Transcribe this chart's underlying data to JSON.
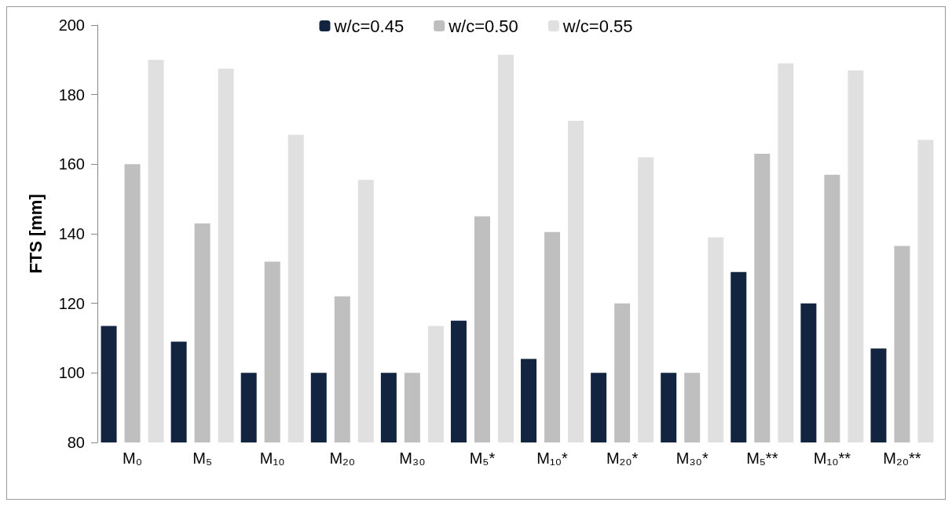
{
  "chart_data": {
    "type": "bar",
    "ylabel": "FTS [mm]",
    "categories": [
      "M₀",
      "M₅",
      "M₁₀",
      "M₂₀",
      "M₃₀",
      "M₅*",
      "M₁₀*",
      "M₂₀*",
      "M₃₀*",
      "M₅**",
      "M₁₀**",
      "M₂₀**"
    ],
    "series": [
      {
        "name": "w/c=0.45",
        "color": "#12243f",
        "values": [
          113.5,
          109,
          100,
          100,
          100,
          115,
          104,
          100,
          100,
          129,
          120,
          107
        ]
      },
      {
        "name": "w/c=0.50",
        "color": "#bfbfbf",
        "values": [
          160,
          143,
          132,
          122,
          100,
          145,
          140.5,
          120,
          100,
          163,
          157,
          136.5
        ]
      },
      {
        "name": "w/c=0.55",
        "color": "#e0e0e0",
        "values": [
          190,
          187.5,
          168.5,
          155.5,
          113.5,
          191.5,
          172.5,
          162,
          139,
          189,
          187,
          167
        ]
      }
    ],
    "ylim": [
      80,
      200
    ],
    "yticks": [
      80,
      100,
      120,
      140,
      160,
      180,
      200
    ],
    "grid": false,
    "legend": "top"
  }
}
